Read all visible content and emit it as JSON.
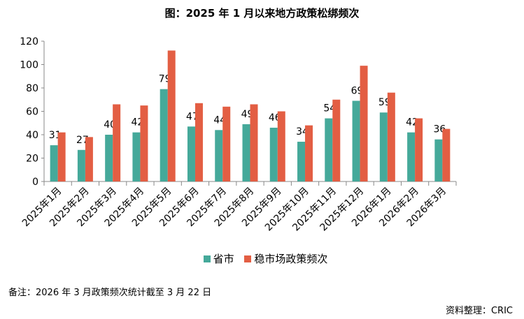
{
  "chart_data": {
    "type": "bar",
    "title": "图：2025 年 1 月以来地方政策松绑频次",
    "categories": [
      "2025年1月",
      "2025年2月",
      "2025年3月",
      "2025年4月",
      "2025年5月",
      "2025年6月",
      "2025年7月",
      "2025年8月",
      "2025年9月",
      "2025年10月",
      "2025年11月",
      "2025年12月",
      "2026年1月",
      "2026年2月",
      "2026年3月"
    ],
    "series": [
      {
        "name": "省市",
        "color": "#45A99A",
        "values": [
          31,
          27,
          40,
          42,
          79,
          47,
          44,
          49,
          46,
          34,
          54,
          69,
          59,
          42,
          36
        ],
        "labels": true
      },
      {
        "name": "稳市场政策频次",
        "color": "#E35E43",
        "values": [
          42,
          38,
          66,
          65,
          112,
          67,
          64,
          66,
          60,
          48,
          70,
          99,
          76,
          54,
          45
        ],
        "labels": false
      }
    ],
    "ylim": [
      0,
      120
    ],
    "yticks": [
      0,
      20,
      40,
      60,
      80,
      100,
      120
    ],
    "grid": false,
    "legend": "bottom"
  },
  "footnote": "备注：2026 年  3  月政策频次统计截至  3  月  22 日",
  "source": "资料整理：CRIC"
}
